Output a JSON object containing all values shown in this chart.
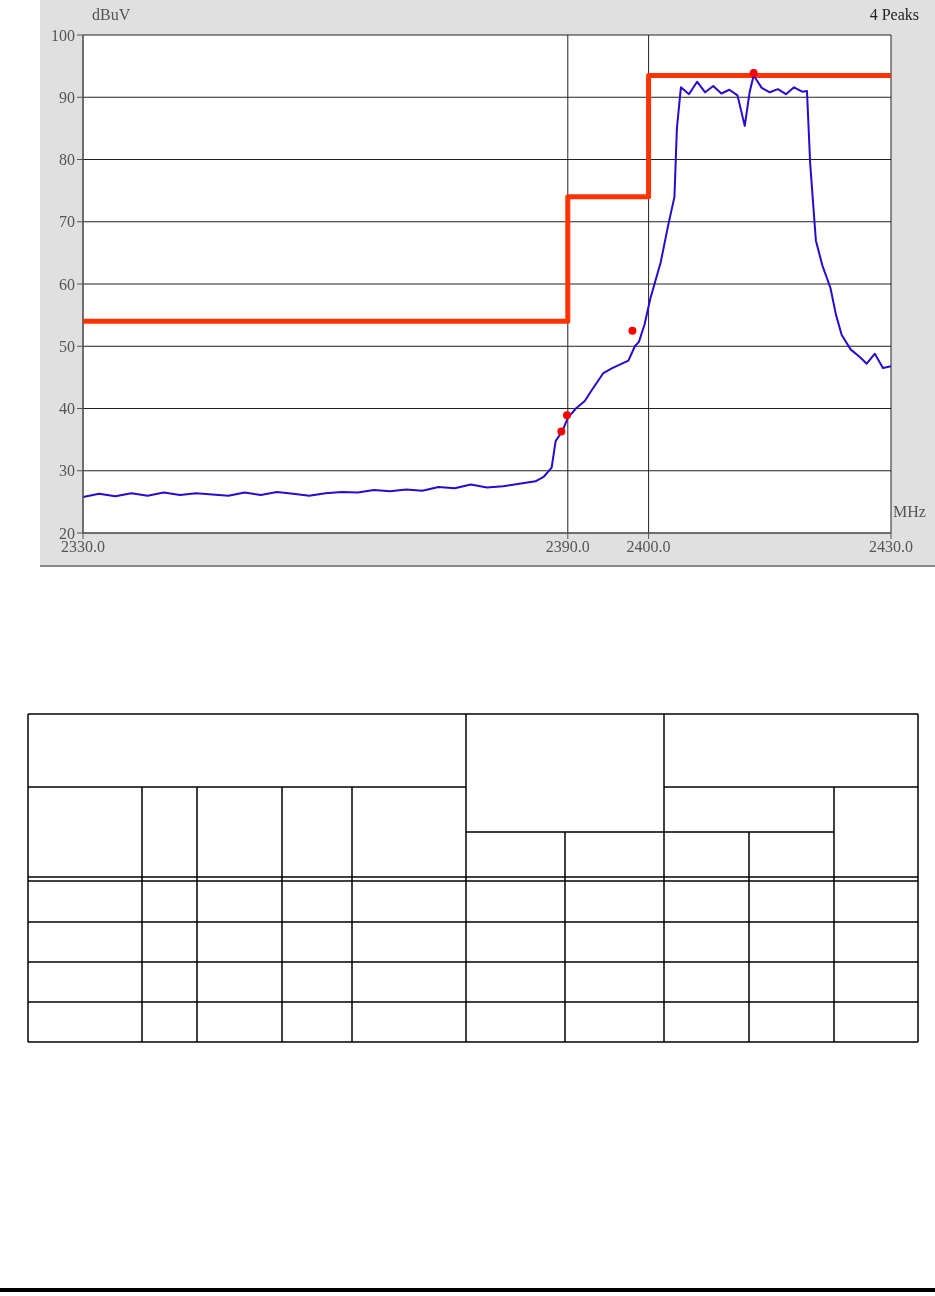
{
  "chart_data": {
    "type": "line",
    "xlabel": "MHz",
    "ylabel": "dBuV",
    "annotations": [
      "4 Peaks"
    ],
    "xlim": [
      2330,
      2430
    ],
    "xticks": [
      {
        "value": 2330,
        "label": "2330.0"
      },
      {
        "value": 2390,
        "label": "2390.0"
      },
      {
        "value": 2400,
        "label": "2400.0"
      },
      {
        "value": 2430,
        "label": "2430.0"
      }
    ],
    "ylim": [
      20,
      100
    ],
    "yticks": [
      20,
      30,
      40,
      50,
      60,
      70,
      80,
      90,
      100
    ],
    "grid": true,
    "series": [
      {
        "type": "step",
        "color": "#ff3300",
        "x": [
          2330,
          2390,
          2400,
          2430
        ],
        "values": [
          54,
          74,
          93.5,
          93.5
        ]
      },
      {
        "color": "#2a0acc",
        "x": [
          2330,
          2332,
          2334,
          2336,
          2338,
          2340,
          2342,
          2344,
          2346,
          2348,
          2350,
          2352,
          2354,
          2356,
          2358,
          2360,
          2362,
          2364,
          2366,
          2368,
          2370,
          2372,
          2374,
          2376,
          2378,
          2380,
          2382,
          2384,
          2386,
          2387,
          2388,
          2388.5,
          2389.3,
          2390,
          2391,
          2392.1,
          2393,
          2394.4,
          2395.5,
          2397.5,
          2398.3,
          2398.8,
          2399.5,
          2400.2,
          2401.5,
          2402.4,
          2403.2,
          2403.5,
          2404,
          2405,
          2406,
          2407,
          2408,
          2409,
          2410,
          2411,
          2411.9,
          2412.5,
          2413,
          2414,
          2415,
          2416,
          2417,
          2418,
          2419,
          2419.6,
          2420,
          2420.7,
          2421.5,
          2422.5,
          2423.2,
          2423.9,
          2425,
          2426.1,
          2427,
          2428,
          2429,
          2430
        ],
        "values": [
          25.8,
          26.3,
          25.9,
          26.4,
          26,
          26.5,
          26.1,
          26.4,
          26.2,
          26,
          26.5,
          26.1,
          26.6,
          26.3,
          26,
          26.4,
          26.6,
          26.5,
          26.9,
          26.7,
          27,
          26.8,
          27.4,
          27.2,
          27.8,
          27.3,
          27.5,
          27.9,
          28.3,
          29,
          30.5,
          34.8,
          36.3,
          38.5,
          40,
          41.2,
          43,
          45.7,
          46.5,
          47.7,
          50,
          50.7,
          53.5,
          57.6,
          63.5,
          69.3,
          74,
          85,
          91.6,
          90.5,
          92.5,
          90.8,
          91.8,
          90.6,
          91.2,
          90.3,
          85.4,
          90.8,
          93.5,
          91.5,
          90.8,
          91.3,
          90.5,
          91.6,
          90.9,
          91,
          79.3,
          67,
          63,
          59.4,
          55,
          51.8,
          49.5,
          48.3,
          47.2,
          48.8,
          46.5,
          46.8
        ]
      },
      {
        "type": "scatter",
        "color": "#ff0000",
        "marker": "circle",
        "x": [
          2389.2,
          2389.9,
          2398,
          2413
        ],
        "values": [
          36.3,
          38.9,
          52.5,
          93.9
        ]
      }
    ]
  }
}
